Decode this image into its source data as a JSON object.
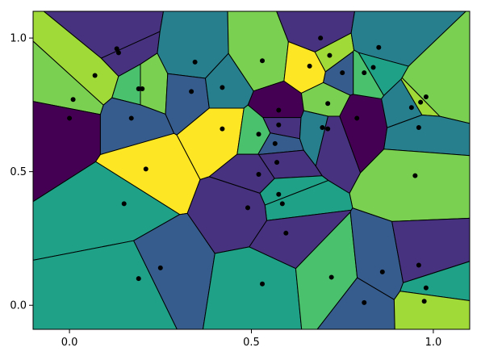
{
  "chart_data": {
    "type": "voronoi",
    "title": "",
    "xlabel": "",
    "ylabel": "",
    "xlim": [
      -0.1,
      1.1
    ],
    "ylim": [
      -0.09,
      1.1
    ],
    "grid": false,
    "legend": "none",
    "x_ticks": [
      {
        "value": 0.0,
        "label": "0.0"
      },
      {
        "value": 0.5,
        "label": "0.5"
      },
      {
        "value": 1.0,
        "label": "1.0"
      }
    ],
    "y_ticks": [
      {
        "value": 0.0,
        "label": "0.0"
      },
      {
        "value": 0.5,
        "label": "0.5"
      },
      {
        "value": 1.0,
        "label": "1.0"
      }
    ],
    "palette": [
      "#440154",
      "#46327e",
      "#365c8d",
      "#277f8e",
      "#1fa187",
      "#4ac16d",
      "#7ad151",
      "#a0da39",
      "#fde725"
    ],
    "edge_color": "#000000",
    "point_color": "#000000",
    "points": [
      {
        "x": 0.13,
        "y": 0.96,
        "color": "#46327e"
      },
      {
        "x": 0.135,
        "y": 0.945,
        "color": "#46327e"
      },
      {
        "x": 0.07,
        "y": 0.86,
        "color": "#a0da39"
      },
      {
        "x": 0.01,
        "y": 0.77,
        "color": "#7ad151"
      },
      {
        "x": 0.0,
        "y": 0.7,
        "color": "#440154"
      },
      {
        "x": 0.19,
        "y": 0.81,
        "color": "#4ac16d"
      },
      {
        "x": 0.2,
        "y": 0.81,
        "color": "#7ad151"
      },
      {
        "x": 0.17,
        "y": 0.7,
        "color": "#365c8d"
      },
      {
        "x": 0.345,
        "y": 0.91,
        "color": "#277f8e"
      },
      {
        "x": 0.335,
        "y": 0.8,
        "color": "#365c8d"
      },
      {
        "x": 0.42,
        "y": 0.815,
        "color": "#277f8e"
      },
      {
        "x": 0.53,
        "y": 0.915,
        "color": "#7ad151"
      },
      {
        "x": 0.42,
        "y": 0.66,
        "color": "#fde725"
      },
      {
        "x": 0.52,
        "y": 0.64,
        "color": "#4ac16d"
      },
      {
        "x": 0.575,
        "y": 0.73,
        "color": "#440154"
      },
      {
        "x": 0.575,
        "y": 0.675,
        "color": "#46327e"
      },
      {
        "x": 0.565,
        "y": 0.605,
        "color": "#365c8d"
      },
      {
        "x": 0.69,
        "y": 1.0,
        "color": "#46327e"
      },
      {
        "x": 0.66,
        "y": 0.895,
        "color": "#fde725"
      },
      {
        "x": 0.715,
        "y": 0.935,
        "color": "#a0da39"
      },
      {
        "x": 0.75,
        "y": 0.87,
        "color": "#365c8d"
      },
      {
        "x": 0.71,
        "y": 0.755,
        "color": "#7ad151"
      },
      {
        "x": 0.695,
        "y": 0.665,
        "color": "#277f8e"
      },
      {
        "x": 0.71,
        "y": 0.66,
        "color": "#46327e"
      },
      {
        "x": 0.79,
        "y": 0.7,
        "color": "#440154"
      },
      {
        "x": 0.85,
        "y": 0.965,
        "color": "#277f8e"
      },
      {
        "x": 0.835,
        "y": 0.89,
        "color": "#1fa187"
      },
      {
        "x": 0.81,
        "y": 0.87,
        "color": "#4ac16d"
      },
      {
        "x": 0.94,
        "y": 0.74,
        "color": "#277f8e"
      },
      {
        "x": 0.965,
        "y": 0.76,
        "color": "#a0da39"
      },
      {
        "x": 0.98,
        "y": 0.78,
        "color": "#7ad151"
      },
      {
        "x": 0.96,
        "y": 0.665,
        "color": "#277f8e"
      },
      {
        "x": 0.21,
        "y": 0.51,
        "color": "#fde725"
      },
      {
        "x": 0.57,
        "y": 0.535,
        "color": "#46327e"
      },
      {
        "x": 0.52,
        "y": 0.49,
        "color": "#46327e"
      },
      {
        "x": 0.95,
        "y": 0.485,
        "color": "#7ad151"
      },
      {
        "x": 0.15,
        "y": 0.38,
        "color": "#1fa187"
      },
      {
        "x": 0.575,
        "y": 0.415,
        "color": "#1fa187"
      },
      {
        "x": 0.585,
        "y": 0.38,
        "color": "#1fa187"
      },
      {
        "x": 0.49,
        "y": 0.365,
        "color": "#46327e"
      },
      {
        "x": 0.595,
        "y": 0.27,
        "color": "#46327e"
      },
      {
        "x": 0.25,
        "y": 0.14,
        "color": "#365c8d"
      },
      {
        "x": 0.19,
        "y": 0.1,
        "color": "#1fa187"
      },
      {
        "x": 0.53,
        "y": 0.08,
        "color": "#1fa187"
      },
      {
        "x": 0.72,
        "y": 0.105,
        "color": "#4ac16d"
      },
      {
        "x": 0.86,
        "y": 0.125,
        "color": "#365c8d"
      },
      {
        "x": 0.96,
        "y": 0.15,
        "color": "#46327e"
      },
      {
        "x": 0.98,
        "y": 0.065,
        "color": "#1fa187"
      },
      {
        "x": 0.81,
        "y": 0.01,
        "color": "#365c8d"
      },
      {
        "x": 0.975,
        "y": 0.015,
        "color": "#a0da39"
      }
    ]
  }
}
